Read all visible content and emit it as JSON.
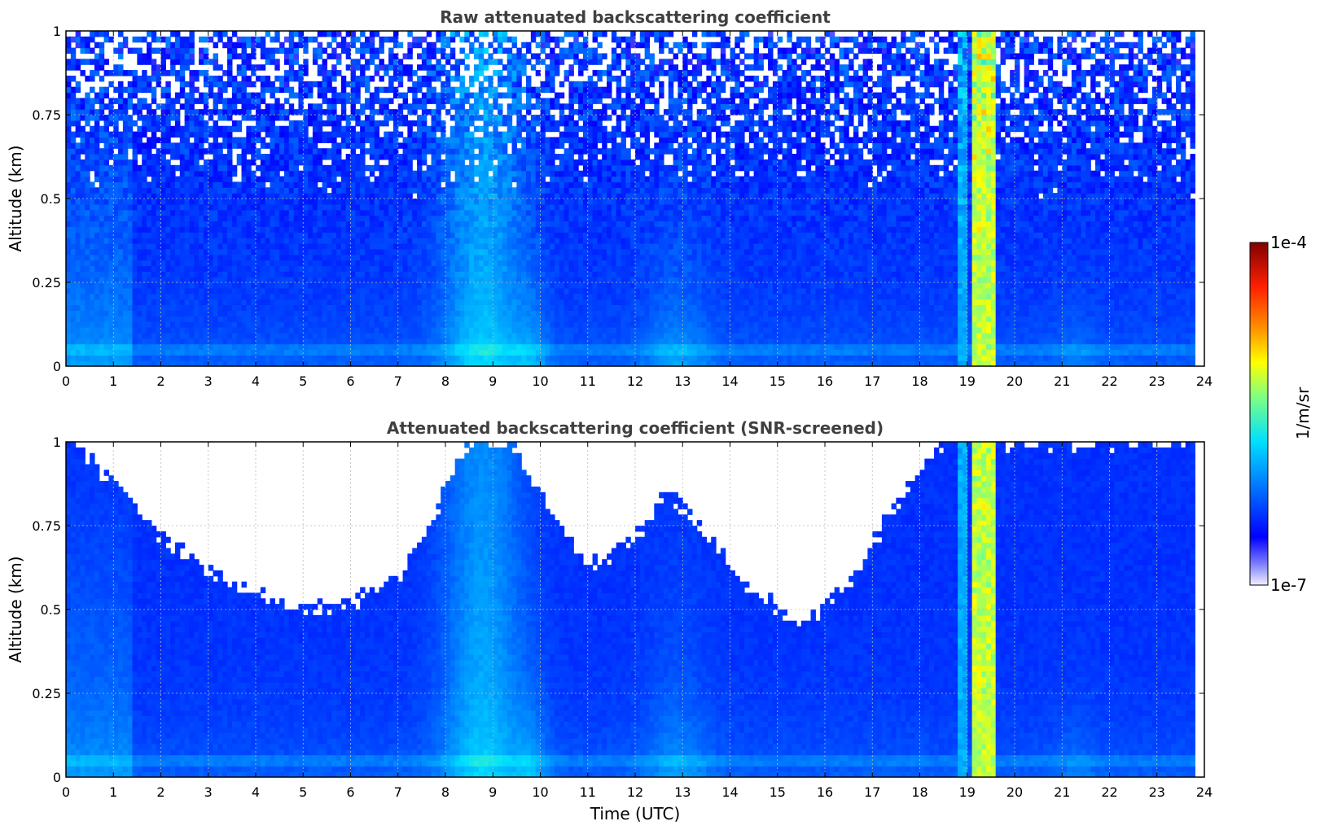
{
  "chart_data": [
    {
      "type": "heatmap",
      "title": "Raw attenuated backscattering coefficient",
      "xlabel": "",
      "ylabel": "Altitude (km)",
      "xlim": [
        0,
        24
      ],
      "ylim": [
        0,
        1
      ],
      "xticks": [
        "0",
        "1",
        "2",
        "3",
        "4",
        "5",
        "6",
        "7",
        "8",
        "9",
        "10",
        "11",
        "12",
        "13",
        "14",
        "15",
        "16",
        "17",
        "18",
        "19",
        "20",
        "21",
        "22",
        "23",
        "24"
      ],
      "yticks": [
        "0",
        "0.25",
        "0.5",
        "0.75",
        "1"
      ],
      "grid": true,
      "screened": false,
      "data_end_time": 23.8,
      "features": [
        {
          "kind": "aerosol_plume",
          "time": [
            7.8,
            10.2
          ],
          "altitude_top": 1.0,
          "intensity": "high"
        },
        {
          "kind": "aerosol_plume",
          "time": [
            12.3,
            14.0
          ],
          "altitude_top": 0.5,
          "intensity": "medium"
        },
        {
          "kind": "dense_layer",
          "time": [
            19.0,
            19.6
          ],
          "altitude_top": 1.0,
          "intensity": "very_high"
        },
        {
          "kind": "surface_layer",
          "time": [
            0,
            23.8
          ],
          "altitude": 0.05
        }
      ]
    },
    {
      "type": "heatmap",
      "title": "Attenuated backscattering coefficient (SNR-screened)",
      "xlabel": "Time (UTC)",
      "ylabel": "Altitude (km)",
      "xlim": [
        0,
        24
      ],
      "ylim": [
        0,
        1
      ],
      "xticks": [
        "0",
        "1",
        "2",
        "3",
        "4",
        "5",
        "6",
        "7",
        "8",
        "9",
        "10",
        "11",
        "12",
        "13",
        "14",
        "15",
        "16",
        "17",
        "18",
        "19",
        "20",
        "21",
        "22",
        "23",
        "24"
      ],
      "yticks": [
        "0",
        "0.25",
        "0.5",
        "0.75",
        "1"
      ],
      "grid": true,
      "screened": true,
      "data_end_time": 23.8,
      "snr_top_boundary": [
        {
          "time": 0,
          "altitude": 1.0
        },
        {
          "time": 1,
          "altitude": 0.88
        },
        {
          "time": 2,
          "altitude": 0.72
        },
        {
          "time": 3,
          "altitude": 0.62
        },
        {
          "time": 4,
          "altitude": 0.55
        },
        {
          "time": 5,
          "altitude": 0.5
        },
        {
          "time": 6,
          "altitude": 0.52
        },
        {
          "time": 7,
          "altitude": 0.6
        },
        {
          "time": 7.5,
          "altitude": 0.72
        },
        {
          "time": 8,
          "altitude": 0.85
        },
        {
          "time": 8.5,
          "altitude": 1.0
        },
        {
          "time": 9.3,
          "altitude": 1.0
        },
        {
          "time": 10,
          "altitude": 0.85
        },
        {
          "time": 11,
          "altitude": 0.63
        },
        {
          "time": 12,
          "altitude": 0.72
        },
        {
          "time": 12.7,
          "altitude": 0.85
        },
        {
          "time": 13.5,
          "altitude": 0.72
        },
        {
          "time": 14.5,
          "altitude": 0.55
        },
        {
          "time": 15.5,
          "altitude": 0.45
        },
        {
          "time": 16.5,
          "altitude": 0.58
        },
        {
          "time": 17.5,
          "altitude": 0.82
        },
        {
          "time": 18.5,
          "altitude": 1.0
        },
        {
          "time": 24,
          "altitude": 1.0
        }
      ]
    }
  ],
  "colorbar": {
    "label": "1/m/sr",
    "max_label": "1e-4",
    "min_label": "1e-7",
    "scale": "log",
    "range": [
      1e-07,
      0.0001
    ],
    "colormap": "jet"
  }
}
